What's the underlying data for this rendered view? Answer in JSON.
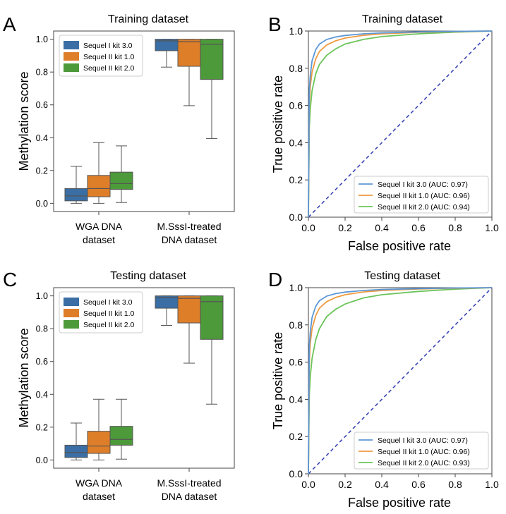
{
  "colors": {
    "kit1": "#3a6ea5",
    "kit2": "#de7e29",
    "kit3": "#4c9a3a",
    "roc1": "#5b97d6",
    "roc2": "#ef9a3f",
    "roc3": "#6bc45a",
    "diag": "#3b46b8"
  },
  "chart_data": [
    {
      "type": "box",
      "panel": "A",
      "title": "Training dataset",
      "ylabel": "Methylation score",
      "ylim": [
        -0.05,
        1.05
      ],
      "yticks": [
        "0.0",
        "0.2",
        "0.4",
        "0.6",
        "0.8",
        "1.0"
      ],
      "categories": [
        [
          "WGA DNA",
          "dataset"
        ],
        [
          "M.SssI-treated",
          "DNA dataset"
        ]
      ],
      "legend": [
        "Sequel I kit 3.0",
        "Sequel II kit 1.0",
        "Sequel II kit 2.0"
      ],
      "legend_position": "upper-left",
      "boxes": [
        [
          {
            "min": 0.0,
            "q1": 0.015,
            "median": 0.045,
            "q3": 0.09,
            "max": 0.225
          },
          {
            "min": 0.0,
            "q1": 0.04,
            "median": 0.09,
            "q3": 0.17,
            "max": 0.37
          },
          {
            "min": 0.005,
            "q1": 0.085,
            "median": 0.12,
            "q3": 0.19,
            "max": 0.35
          }
        ],
        [
          {
            "min": 0.83,
            "q1": 0.93,
            "median": 0.99,
            "q3": 1.0,
            "max": 1.0
          },
          {
            "min": 0.595,
            "q1": 0.835,
            "median": 0.985,
            "q3": 1.0,
            "max": 1.0
          },
          {
            "min": 0.395,
            "q1": 0.755,
            "median": 0.97,
            "q3": 1.0,
            "max": 1.0
          }
        ]
      ]
    },
    {
      "type": "line",
      "panel": "B",
      "title": "Training dataset",
      "xlabel": "False positive rate",
      "ylabel": "True positive rate",
      "xlim": [
        0,
        1
      ],
      "ylim": [
        0,
        1
      ],
      "xticks": [
        "0.0",
        "0.2",
        "0.4",
        "0.6",
        "0.8",
        "1.0"
      ],
      "yticks": [
        "0.0",
        "0.2",
        "0.4",
        "0.6",
        "0.8",
        "1.0"
      ],
      "legend_position": "lower-right",
      "series": [
        {
          "name": "Sequel I kit 3.0 (AUC: 0.97)",
          "auc": 0.97,
          "x": [
            0,
            0.005,
            0.01,
            0.02,
            0.04,
            0.06,
            0.1,
            0.15,
            0.2,
            0.3,
            0.4,
            0.6,
            0.8,
            1.0
          ],
          "y": [
            0,
            0.68,
            0.76,
            0.84,
            0.9,
            0.93,
            0.955,
            0.968,
            0.976,
            0.985,
            0.99,
            0.995,
            0.998,
            1.0
          ]
        },
        {
          "name": "Sequel II kit 1.0 (AUC: 0.96)",
          "auc": 0.96,
          "x": [
            0,
            0.005,
            0.01,
            0.02,
            0.04,
            0.06,
            0.1,
            0.15,
            0.2,
            0.3,
            0.4,
            0.6,
            0.8,
            1.0
          ],
          "y": [
            0,
            0.6,
            0.7,
            0.78,
            0.85,
            0.89,
            0.925,
            0.948,
            0.962,
            0.977,
            0.985,
            0.993,
            0.997,
            1.0
          ]
        },
        {
          "name": "Sequel II kit 2.0 (AUC: 0.94)",
          "auc": 0.94,
          "x": [
            0,
            0.005,
            0.01,
            0.02,
            0.04,
            0.06,
            0.1,
            0.15,
            0.2,
            0.3,
            0.4,
            0.6,
            0.8,
            1.0
          ],
          "y": [
            0,
            0.48,
            0.58,
            0.68,
            0.77,
            0.82,
            0.87,
            0.905,
            0.93,
            0.955,
            0.97,
            0.985,
            0.994,
            1.0
          ]
        }
      ]
    },
    {
      "type": "box",
      "panel": "C",
      "title": "Testing dataset",
      "ylabel": "Methylation score",
      "ylim": [
        -0.05,
        1.05
      ],
      "yticks": [
        "0.0",
        "0.2",
        "0.4",
        "0.6",
        "0.8",
        "1.0"
      ],
      "categories": [
        [
          "WGA DNA",
          "dataset"
        ],
        [
          "M.SssI-treated",
          "DNA dataset"
        ]
      ],
      "legend": [
        "Sequel I kit 3.0",
        "Sequel II kit 1.0",
        "Sequel II kit 2.0"
      ],
      "legend_position": "upper-left",
      "boxes": [
        [
          {
            "min": 0.0,
            "q1": 0.015,
            "median": 0.045,
            "q3": 0.09,
            "max": 0.225
          },
          {
            "min": 0.0,
            "q1": 0.04,
            "median": 0.085,
            "q3": 0.175,
            "max": 0.37
          },
          {
            "min": 0.005,
            "q1": 0.09,
            "median": 0.125,
            "q3": 0.205,
            "max": 0.37
          }
        ],
        [
          {
            "min": 0.82,
            "q1": 0.925,
            "median": 0.99,
            "q3": 1.0,
            "max": 1.0
          },
          {
            "min": 0.59,
            "q1": 0.835,
            "median": 0.985,
            "q3": 1.0,
            "max": 1.0
          },
          {
            "min": 0.34,
            "q1": 0.735,
            "median": 0.965,
            "q3": 1.0,
            "max": 1.0
          }
        ]
      ]
    },
    {
      "type": "line",
      "panel": "D",
      "title": "Testing dataset",
      "xlabel": "False positive rate",
      "ylabel": "True positive rate",
      "xlim": [
        0,
        1
      ],
      "ylim": [
        0,
        1
      ],
      "xticks": [
        "0.0",
        "0.2",
        "0.4",
        "0.6",
        "0.8",
        "1.0"
      ],
      "yticks": [
        "0.0",
        "0.2",
        "0.4",
        "0.6",
        "0.8",
        "1.0"
      ],
      "legend_position": "lower-right",
      "series": [
        {
          "name": "Sequel I kit 3.0 (AUC: 0.97)",
          "auc": 0.97,
          "x": [
            0,
            0.005,
            0.01,
            0.02,
            0.04,
            0.06,
            0.1,
            0.15,
            0.2,
            0.3,
            0.4,
            0.6,
            0.8,
            1.0
          ],
          "y": [
            0,
            0.68,
            0.76,
            0.84,
            0.9,
            0.93,
            0.955,
            0.968,
            0.976,
            0.985,
            0.99,
            0.995,
            0.998,
            1.0
          ]
        },
        {
          "name": "Sequel II kit 1.0 (AUC: 0.96)",
          "auc": 0.96,
          "x": [
            0,
            0.005,
            0.01,
            0.02,
            0.04,
            0.06,
            0.1,
            0.15,
            0.2,
            0.3,
            0.4,
            0.6,
            0.8,
            1.0
          ],
          "y": [
            0,
            0.6,
            0.7,
            0.78,
            0.85,
            0.89,
            0.925,
            0.948,
            0.962,
            0.977,
            0.985,
            0.993,
            0.997,
            1.0
          ]
        },
        {
          "name": "Sequel II kit 2.0 (AUC: 0.93)",
          "auc": 0.93,
          "x": [
            0,
            0.005,
            0.01,
            0.02,
            0.04,
            0.06,
            0.1,
            0.15,
            0.2,
            0.3,
            0.4,
            0.6,
            0.8,
            1.0
          ],
          "y": [
            0,
            0.42,
            0.52,
            0.62,
            0.72,
            0.78,
            0.845,
            0.885,
            0.912,
            0.945,
            0.962,
            0.98,
            0.992,
            1.0
          ]
        }
      ]
    }
  ]
}
